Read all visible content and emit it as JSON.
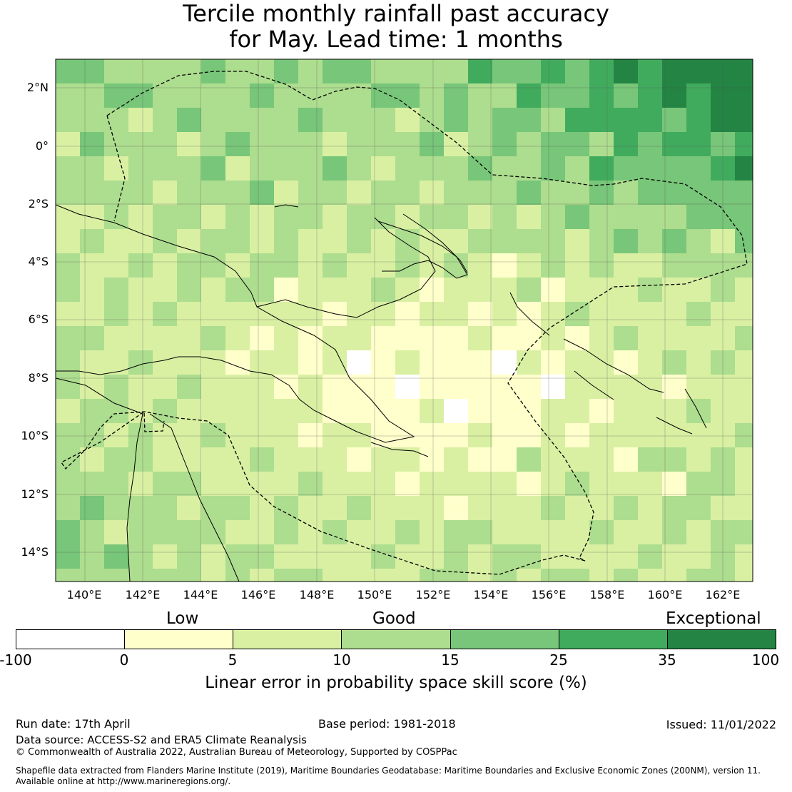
{
  "title_line1": "Tercile monthly rainfall past accuracy",
  "title_line2": "for May. Lead time: 1 months",
  "lat_labels": [
    "2°N",
    "0°",
    "2°S",
    "4°S",
    "6°S",
    "8°S",
    "10°S",
    "12°S",
    "14°S"
  ],
  "lon_labels": [
    "140°E",
    "142°E",
    "144°E",
    "146°E",
    "148°E",
    "150°E",
    "152°E",
    "154°E",
    "156°E",
    "158°E",
    "160°E",
    "162°E"
  ],
  "legend": {
    "categories": [
      "Low",
      "Good",
      "Exceptional"
    ],
    "ticks": [
      "-100",
      "0",
      "5",
      "10",
      "15",
      "25",
      "35",
      "100"
    ],
    "colors": [
      "#ffffff",
      "#ffffcc",
      "#d9f0a3",
      "#addd8e",
      "#78c679",
      "#41ab5d",
      "#238443"
    ],
    "label": "Linear error in probability space skill score (%)"
  },
  "footer": {
    "run_date": "Run date: 17th April",
    "base_period": "Base period: 1981-2018",
    "issued": "Issued: 11/01/2022",
    "data_source": "Data source: ACCESS-S2 and ERA5 Climate Reanalysis",
    "copyright": "© Commonwealth of Australia 2022, Australian Bureau of Meteorology, Supported by COSPPac",
    "shapefile_line1": "Shapefile data extracted from Flanders Marine Institute (2019), Maritime Boundaries Geodatabase: Maritime Boundaries and Exclusive Economic Zones (200NM), version 11.",
    "shapefile_line2": "Available online at http://www.marineregions.org/."
  }
}
